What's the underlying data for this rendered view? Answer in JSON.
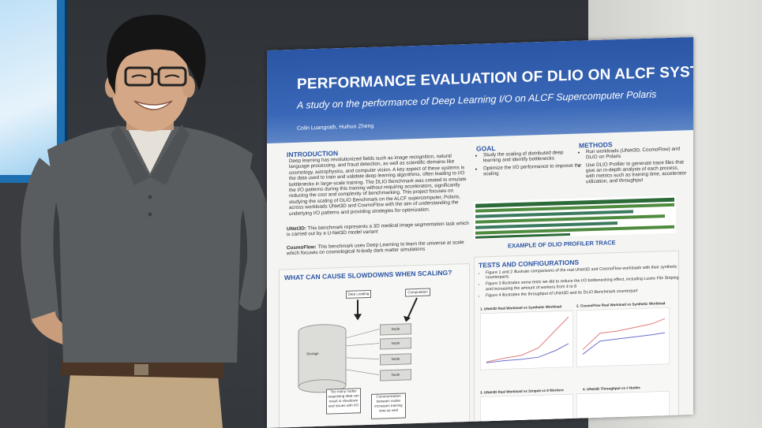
{
  "poster": {
    "title": "PERFORMANCE EVALUATION OF DLIO ON ALCF SYSTEMS",
    "subtitle": "A study on the performance of Deep Learning I/O on ALCF Supercomputer Polaris",
    "authors": "Colin Luangrath, Huihuo Zheng",
    "introduction": {
      "heading": "INTRODUCTION",
      "text": "Deep learning has revolutionized fields such as image recognition, natural language processing, and fraud detection, as well as scientific domains like cosmology, astrophysics, and computer vision. A key aspect of these systems is the data used to train and validate deep learning algorithms, often leading to I/O bottlenecks in large-scale training. The DLIO Benchmark was created to emulate the I/O patterns during this training without requiring accelerators, significantly reducing the cost and complexity of benchmarking. This project focuses on studying the scaling of DLIO Benchmark on the ALCF supercomputer, Polaris, across workloads UNet3D and CosmoFlow with the aim of understanding the underlying I/O patterns and providing strategies for optimization.",
      "unet_label": "UNet3D:",
      "unet_text": "This benchmark represents a 3D medical image segmentation task which is carried out by a U-Net3D model variant",
      "cosmo_label": "CosmoFlow:",
      "cosmo_text": "This benchmark uses Deep Learning to learn the universe at scale which focuses on cosmological N-body dark matter simulations"
    },
    "goal": {
      "heading": "GOAL",
      "items": [
        "Study the scaling of distributed deep learning and identify bottlenecks",
        "Optimize the I/O performance to improve the scaling"
      ]
    },
    "methods": {
      "heading": "METHODS",
      "items": [
        "Run workloads (UNet3D, CosmoFlow) and DLIO on Polaris",
        "Use DLIO Profiler to generate trace files that give an in-depth analysis of each process, with metrics such as training time, accelerator utilization, and throughput"
      ]
    },
    "trace_caption": "EXAMPLE OF DLIO PROFILER TRACE",
    "slowdowns_heading": "WHAT CAN CAUSE SLOWDOWNS WHEN SCALING?",
    "diagram": {
      "data_loading": "Data Loading",
      "computation": "Computation",
      "storage": "Storage",
      "node": "Node",
      "too_many": "Too many nodes requesting data can result in slowdown and issues with I/O",
      "communication": "Communication between nodes increases training time as well"
    },
    "tests": {
      "heading": "TESTS AND CONFIGURATIONS",
      "items": [
        "Figure 1 and 2 illustrate comparisons of the real UNet3D and CosmoFlow workloads with their synthetic counterparts",
        "Figure 3 illustrates some tests we did to reduce the I/O bottlenecking effect, including Lustre File Striping and increasing the amount of workers from 4 to 8",
        "Figure 4 illustrates the throughput of UNet3D and its DLIO Benchmark counterpart"
      ],
      "fig1": "1. UNet3D Real Workload vs Synthetic Workload",
      "fig2": "2. CosmoFlow Real Workload vs Synthetic Workload",
      "fig3": "3. UNet3D Real Workload vs Striped vs 8 Workers",
      "fig4": "4. UNet3D Throughput vs # Nodes"
    }
  },
  "colors": {
    "poster_header": "#2b55a5",
    "shirt": "#5a5d5f",
    "pants": "#c2a882"
  }
}
